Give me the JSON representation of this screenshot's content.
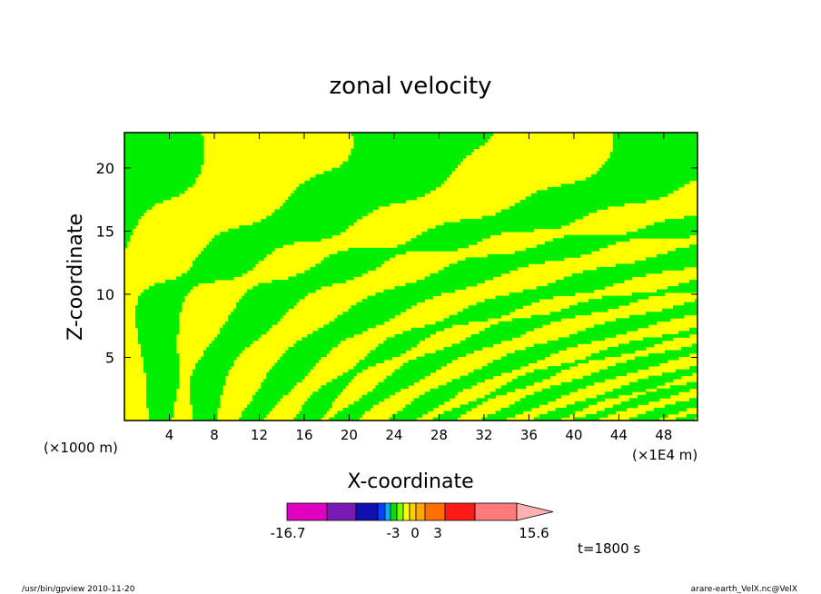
{
  "chart_data": {
    "type": "heatmap",
    "title": "zonal velocity",
    "xlabel": "X-coordinate",
    "ylabel": "Z-coordinate",
    "x_unit_left": "(×1000 m)",
    "x_unit_right": "(×1E4 m)",
    "xlim": [
      0,
      51
    ],
    "ylim": [
      0,
      22.8
    ],
    "xticks": [
      4,
      8,
      12,
      16,
      20,
      24,
      28,
      32,
      36,
      40,
      44,
      48
    ],
    "yticks": [
      5,
      10,
      15,
      20
    ],
    "colorbar": {
      "labels": [
        "-16.7",
        "-3",
        "0",
        "3",
        "15.6"
      ],
      "colors": [
        "#e000c0",
        "#7a1ab4",
        "#1010b0",
        "#0040ff",
        "#00b0ff",
        "#00e000",
        "#7cff00",
        "#ffff00",
        "#ffd000",
        "#ffa800",
        "#ff7000",
        "#ff1a1a",
        "#ff7a7a",
        "#ffb0b0"
      ]
    },
    "field_colors": {
      "positive": "#ffff00",
      "negative": "#00ee00",
      "contour": "#000000"
    },
    "time_label": "t=1800 s"
  },
  "footer": {
    "left": "/usr/bin/gpview  2010-11-20",
    "right": "arare-earth_VelX.nc@VelX"
  }
}
